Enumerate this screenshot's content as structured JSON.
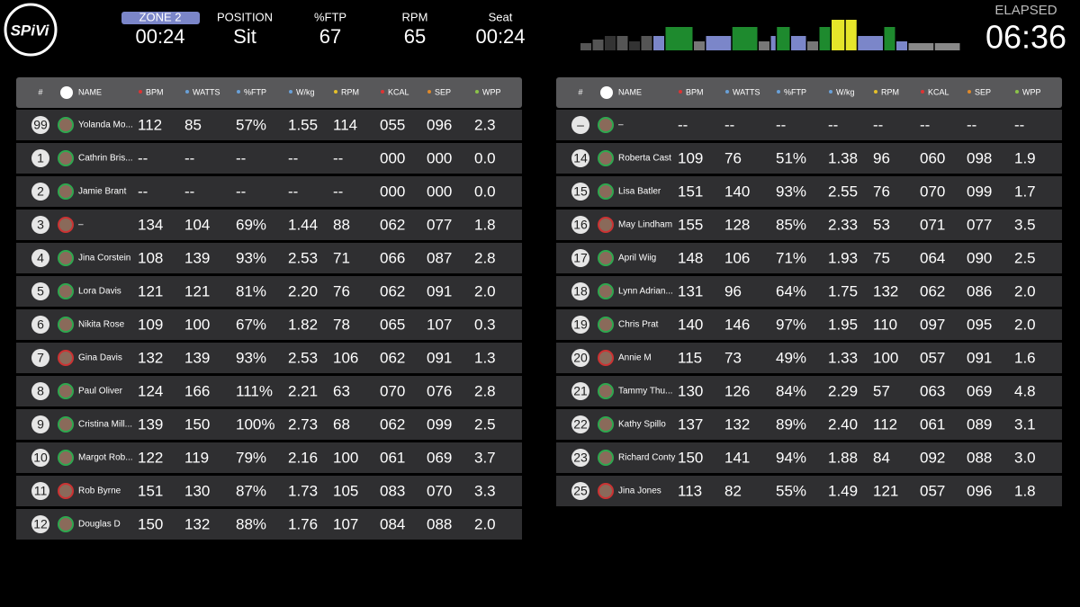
{
  "header": {
    "logo": "SPiVi",
    "stats": [
      {
        "label": "ZONE 2",
        "value": "00:24"
      },
      {
        "label": "POSITION",
        "value": "Sit"
      },
      {
        "label": "%FTP",
        "value": "67"
      },
      {
        "label": "RPM",
        "value": "65"
      },
      {
        "label": "Seat",
        "value": "00:24"
      }
    ],
    "elapsed": {
      "label": "ELAPSED",
      "value": "06:36"
    }
  },
  "profile": {
    "durations": [
      6,
      6,
      6,
      6,
      6,
      6,
      6,
      14,
      6,
      13,
      13,
      6,
      3,
      7,
      8,
      6,
      6,
      7,
      6,
      13,
      6,
      6,
      13,
      13
    ],
    "values": [
      8,
      12,
      16,
      16,
      10,
      16,
      16,
      26,
      10,
      16,
      26,
      10,
      16,
      26,
      16,
      10,
      26,
      34,
      34,
      16,
      26,
      10,
      8,
      8
    ],
    "colors": [
      "#555",
      "#555",
      "#333",
      "#555",
      "#333",
      "#555",
      "#7b86c9",
      "#1e8a2e",
      "#777",
      "#7b86c9",
      "#1e8a2e",
      "#777",
      "#7b86c9",
      "#1e8a2e",
      "#7b86c9",
      "#777",
      "#1e8a2e",
      "#e5e52a",
      "#e5e52a",
      "#7b86c9",
      "#1e8a2e",
      "#7b86c9",
      "#888",
      "#888"
    ]
  },
  "tables": [
    {
      "columns": [
        "#",
        "NAME",
        "BPM",
        "WATTS",
        "%FTP",
        "W/kg",
        "RPM",
        "KCAL",
        "SEP",
        "WPP"
      ],
      "rows": [
        [
          "99",
          "Yolanda  Mo...",
          "112",
          "85",
          "57%",
          "1.55",
          "114",
          "055",
          "096",
          "2.3"
        ],
        [
          "1",
          "Cathrin Bris...",
          "--",
          "--",
          "--",
          "--",
          "--",
          "000",
          "000",
          "0.0"
        ],
        [
          "2",
          "Jamie Brant",
          "--",
          "--",
          "--",
          "--",
          "--",
          "000",
          "000",
          "0.0"
        ],
        [
          "3",
          "–",
          "134",
          "104",
          "69%",
          "1.44",
          "88",
          "062",
          "077",
          "1.8"
        ],
        [
          "4",
          "Jina  Corstein",
          "108",
          "139",
          "93%",
          "2.53",
          "71",
          "066",
          "087",
          "2.8"
        ],
        [
          "5",
          "Lora Davis",
          "121",
          "121",
          "81%",
          "2.20",
          "76",
          "062",
          "091",
          "2.0"
        ],
        [
          "6",
          "Nikita Rose",
          "109",
          "100",
          "67%",
          "1.82",
          "78",
          "065",
          "107",
          "0.3"
        ],
        [
          "7",
          "Gina Davis",
          "132",
          "139",
          "93%",
          "2.53",
          "106",
          "062",
          "091",
          "1.3"
        ],
        [
          "8",
          "Paul Oliver",
          "124",
          "166",
          "111%",
          "2.21",
          "63",
          "070",
          "076",
          "2.8"
        ],
        [
          "9",
          "Cristina Mill...",
          "139",
          "150",
          "100%",
          "2.73",
          "68",
          "062",
          "099",
          "2.5"
        ],
        [
          "10",
          "Margot Rob...",
          "122",
          "119",
          "79%",
          "2.16",
          "100",
          "061",
          "069",
          "3.7"
        ],
        [
          "11",
          "Rob Byrne",
          "151",
          "130",
          "87%",
          "1.73",
          "105",
          "083",
          "070",
          "3.3"
        ],
        [
          "12",
          "Douglas D",
          "150",
          "132",
          "88%",
          "1.76",
          "107",
          "084",
          "088",
          "2.0"
        ]
      ]
    },
    {
      "columns": [
        "#",
        "NAME",
        "BPM",
        "WATTS",
        "%FTP",
        "W/kg",
        "RPM",
        "KCAL",
        "SEP",
        "WPP"
      ],
      "rows": [
        [
          "–",
          "–",
          "--",
          "--",
          "--",
          "--",
          "--",
          "--",
          "--",
          "--"
        ],
        [
          "14",
          "Roberta Cast",
          "109",
          "76",
          "51%",
          "1.38",
          "96",
          "060",
          "098",
          "1.9"
        ],
        [
          "15",
          "Lisa Batler",
          "151",
          "140",
          "93%",
          "2.55",
          "76",
          "070",
          "099",
          "1.7"
        ],
        [
          "16",
          "May Lindham",
          "155",
          "128",
          "85%",
          "2.33",
          "53",
          "071",
          "077",
          "3.5"
        ],
        [
          "17",
          "April  Wiig",
          "148",
          "106",
          "71%",
          "1.93",
          "75",
          "064",
          "090",
          "2.5"
        ],
        [
          "18",
          "Lynn Adrian...",
          "131",
          "96",
          "64%",
          "1.75",
          "132",
          "062",
          "086",
          "2.0"
        ],
        [
          "19",
          "Chris Prat",
          "140",
          "146",
          "97%",
          "1.95",
          "110",
          "097",
          "095",
          "2.0"
        ],
        [
          "20",
          "Annie M",
          "115",
          "73",
          "49%",
          "1.33",
          "100",
          "057",
          "091",
          "1.6"
        ],
        [
          "21",
          "Tammy Thu...",
          "130",
          "126",
          "84%",
          "2.29",
          "57",
          "063",
          "069",
          "4.8"
        ],
        [
          "22",
          "Kathy Spillo",
          "137",
          "132",
          "89%",
          "2.40",
          "112",
          "061",
          "089",
          "3.1"
        ],
        [
          "23",
          "Richard Conty",
          "150",
          "141",
          "94%",
          "1.88",
          "84",
          "092",
          "088",
          "3.0"
        ],
        [
          "25",
          "Jina Jones",
          "113",
          "82",
          "55%",
          "1.49",
          "121",
          "057",
          "096",
          "1.8"
        ]
      ]
    }
  ]
}
